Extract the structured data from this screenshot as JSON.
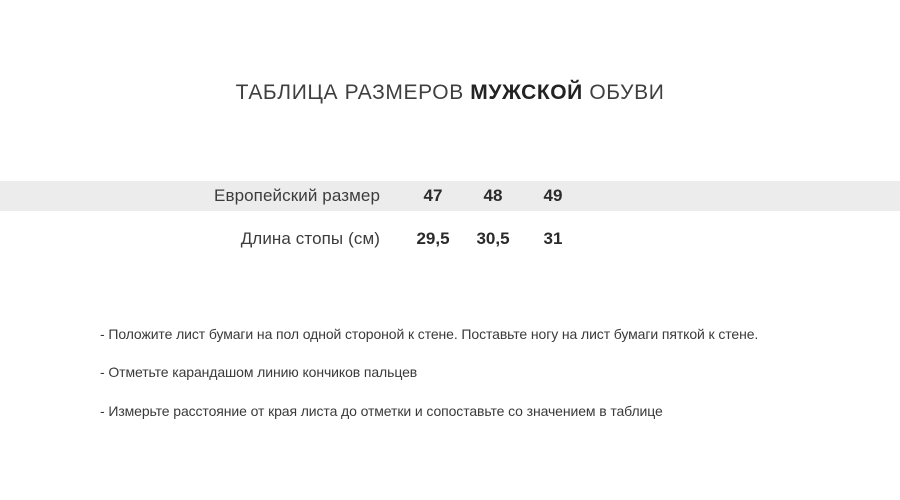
{
  "title": {
    "prefix": "ТАБЛИЦА РАЗМЕРОВ",
    "emphasis": "МУЖСКОЙ",
    "suffix": "ОБУВИ"
  },
  "size_table": {
    "rows": [
      {
        "label": "Европейский размер",
        "values": [
          "47",
          "48",
          "49"
        ]
      },
      {
        "label": "Длина стопы (см)",
        "values": [
          "29,5",
          "30,5",
          "31"
        ]
      }
    ]
  },
  "instructions": [
    "- Положите лист бумаги на пол одной стороной к стене. Поставьте ногу на лист бумаги пяткой к стене.",
    "- Отметьте карандашом линию кончиков пальцев",
    "- Измерьте расстояние от края листа до отметки и сопоставьте со значением в таблице"
  ],
  "chart_data": {
    "type": "table",
    "title": "ТАБЛИЦА РАЗМЕРОВ МУЖСКОЙ ОБУВИ",
    "rows": [
      {
        "label": "Европейский размер",
        "values": [
          47,
          48,
          49
        ]
      },
      {
        "label": "Длина стопы (см)",
        "values": [
          29.5,
          30.5,
          31
        ]
      }
    ],
    "notes": [
      "- Положите лист бумаги на пол одной стороной к стене. Поставьте ногу на лист бумаги пяткой к стене.",
      "- Отметьте карандашом линию кончиков пальцев",
      "- Измерьте расстояние от края листа до отметки и сопоставьте со значением в таблице"
    ],
    "layout": {
      "header_row_highlighted": true,
      "label_alignment": "right",
      "value_alignment": "center"
    }
  },
  "colors": {
    "row_highlight": "#ececec",
    "title_text": "#3f3f3f",
    "title_emphasis_text": "#232323",
    "body_text": "#3a3a3a",
    "value_text": "#2b2b2b",
    "background": "#ffffff"
  }
}
